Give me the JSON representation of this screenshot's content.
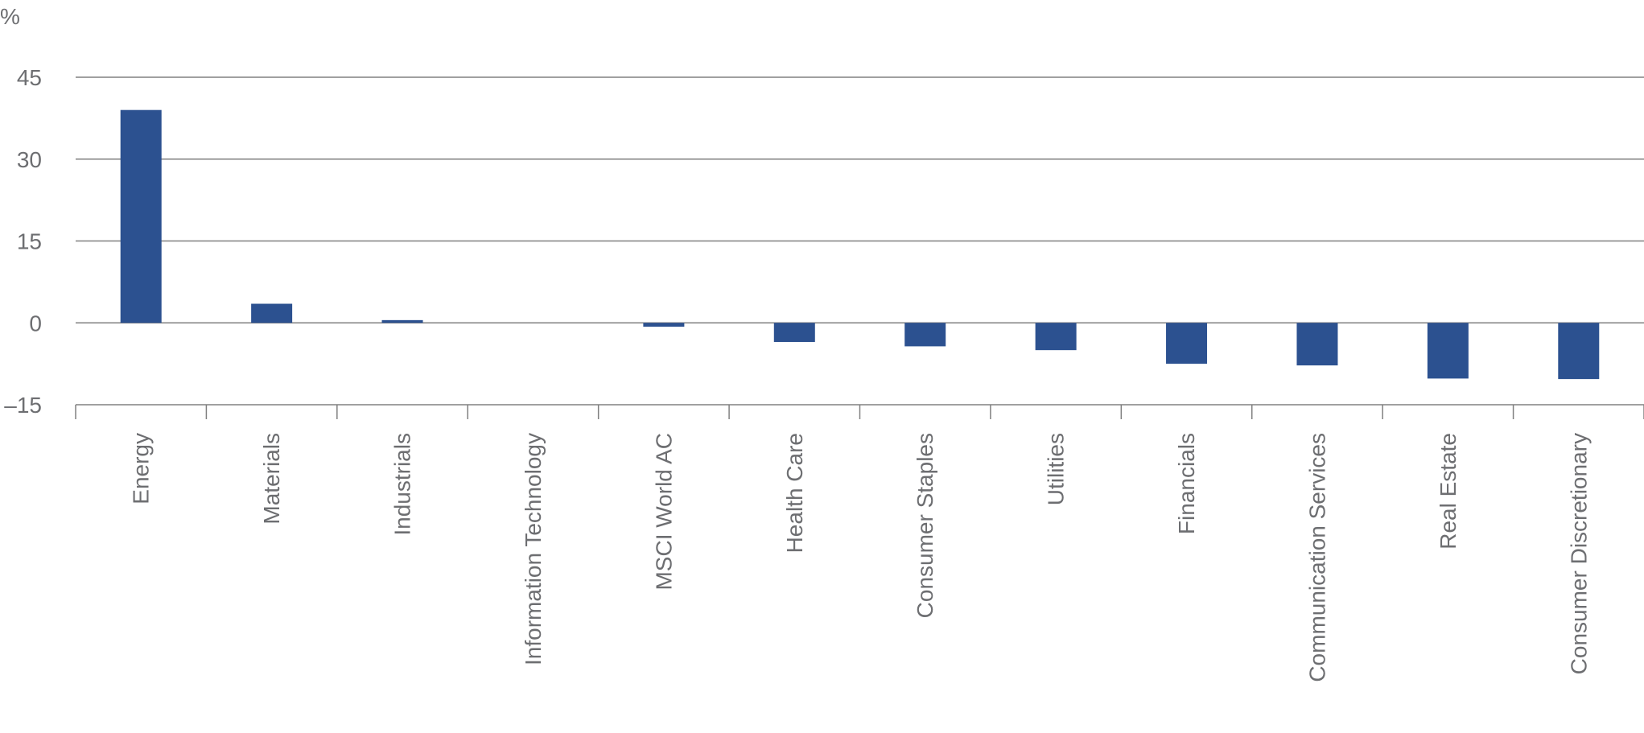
{
  "chart_data": {
    "type": "bar",
    "unit_label": "%",
    "categories": [
      "Energy",
      "Materials",
      "Industrials",
      "Information Technology",
      "MSCI World AC",
      "Health Care",
      "Consumer Staples",
      "Utilities",
      "Financials",
      "Communication Services",
      "Real Estate",
      "Consumer Discretionary"
    ],
    "values": [
      39,
      3.5,
      0.5,
      0,
      -0.7,
      -3.5,
      -4.3,
      -5,
      -7.5,
      -7.8,
      -10.2,
      -10.3
    ],
    "ylim": [
      -15,
      45
    ],
    "yticks": [
      45,
      30,
      15,
      0,
      -15
    ],
    "ytick_labels": [
      "45",
      "30",
      "15",
      "0",
      "–15"
    ],
    "grid": true,
    "bar_color": "#2c5190",
    "grid_color": "#808080",
    "text_color": "#6d6e71",
    "title": "",
    "xlabel": "",
    "ylabel": ""
  }
}
